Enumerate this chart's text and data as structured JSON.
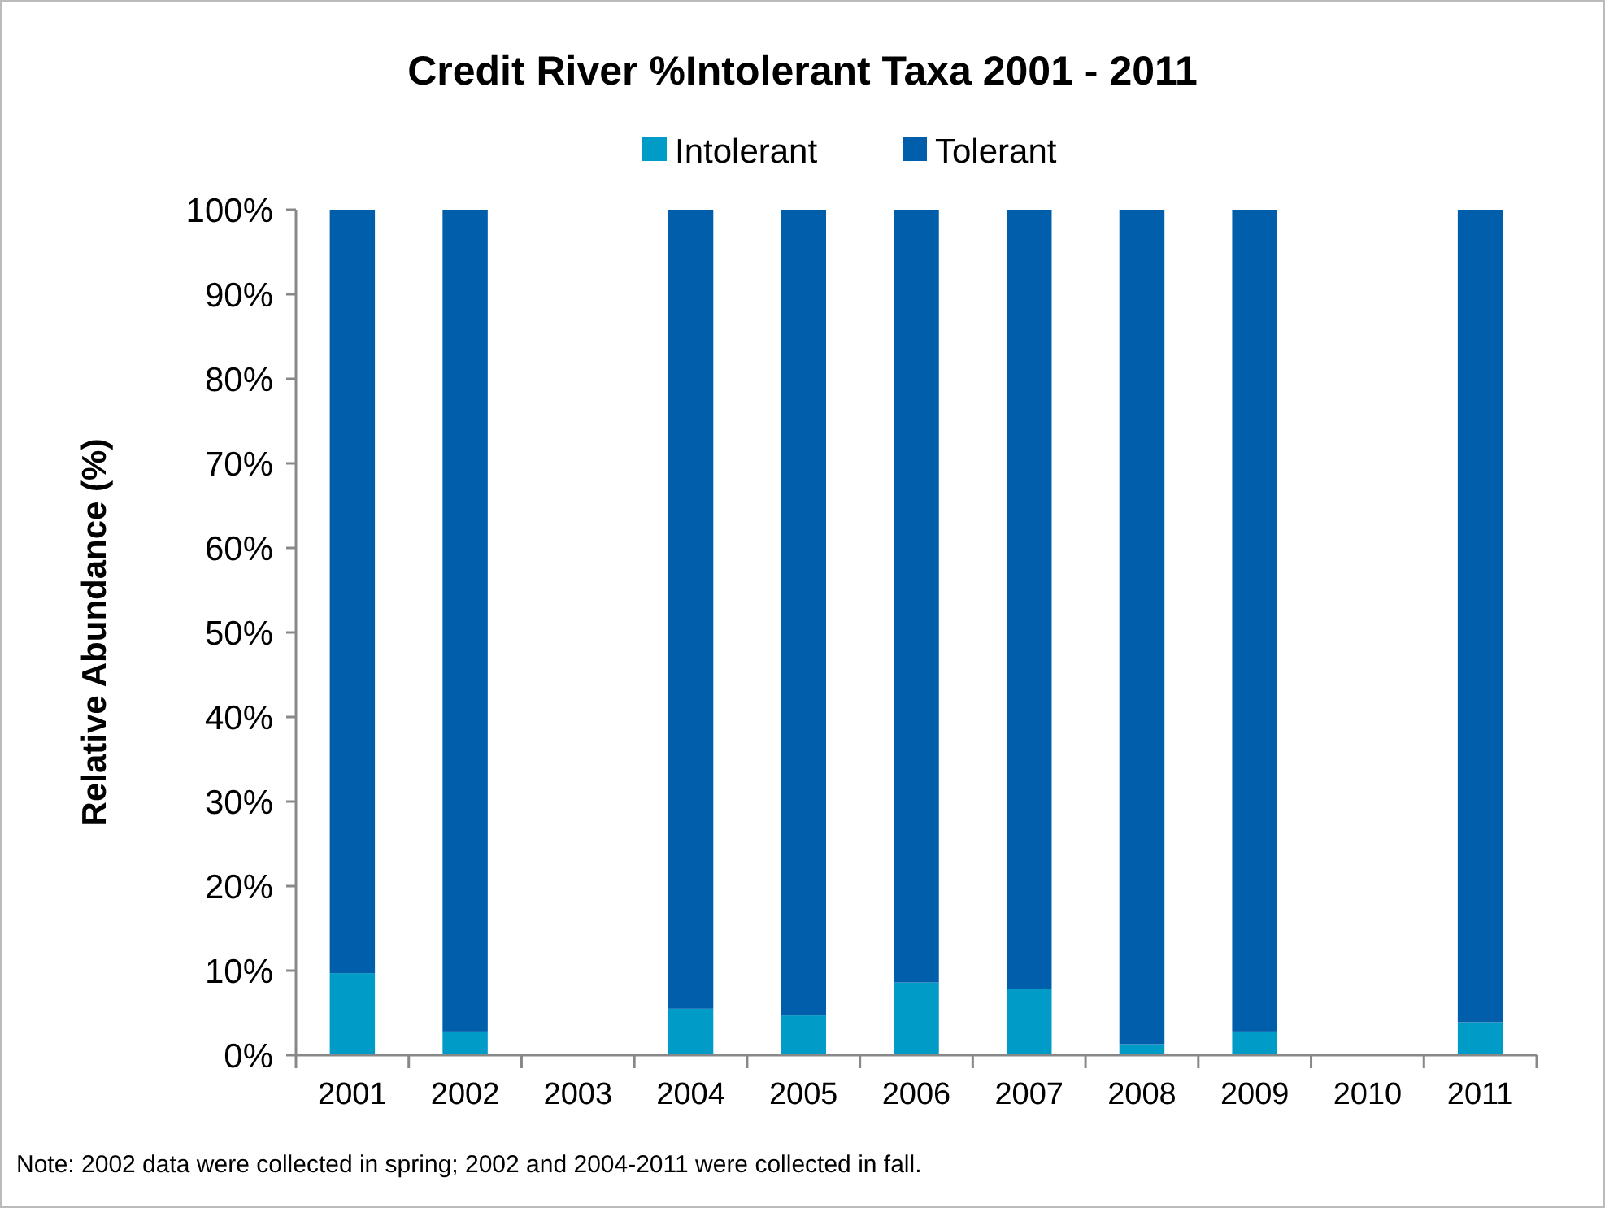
{
  "chart_data": {
    "type": "bar",
    "title": "Credit River %Intolerant  Taxa 2001 - 2011",
    "ylabel": "Relative Abundance  (%)",
    "categories": [
      "2001",
      "2002",
      "2003",
      "2004",
      "2005",
      "2006",
      "2007",
      "2008",
      "2009",
      "2010",
      "2011"
    ],
    "stacked": true,
    "series": [
      {
        "name": "Intolerant",
        "color": "#009bc6",
        "values": [
          9.7,
          2.8,
          null,
          5.5,
          4.7,
          8.6,
          7.8,
          1.3,
          2.8,
          null,
          3.9
        ]
      },
      {
        "name": "Tolerant",
        "color": "#005eab",
        "values": [
          90.3,
          97.2,
          null,
          94.5,
          95.3,
          91.4,
          92.2,
          98.7,
          97.2,
          null,
          96.1
        ]
      }
    ],
    "ylim": [
      0,
      100
    ],
    "yticks": [
      {
        "value": 0,
        "label": "0%"
      },
      {
        "value": 10,
        "label": "10%"
      },
      {
        "value": 20,
        "label": "20%"
      },
      {
        "value": 30,
        "label": "30%"
      },
      {
        "value": 40,
        "label": "40%"
      },
      {
        "value": 50,
        "label": "50%"
      },
      {
        "value": 60,
        "label": "60%"
      },
      {
        "value": 70,
        "label": "70%"
      },
      {
        "value": 80,
        "label": "80%"
      },
      {
        "value": 90,
        "label": "90%"
      },
      {
        "value": 100,
        "label": "100%"
      }
    ],
    "grid": false,
    "legend": "top",
    "annotations": [
      "Note: 2002 data were collected in spring; 2002 and 2004-2011 were collected in fall."
    ]
  }
}
